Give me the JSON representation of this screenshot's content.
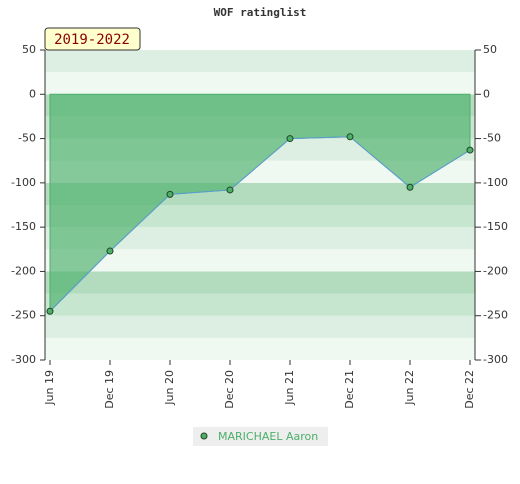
{
  "chart_data": {
    "type": "area",
    "title": "WOF ratinglist",
    "annotation": "2019-2022",
    "categories": [
      "Jun 19",
      "Dec 19",
      "Jun 20",
      "Dec 20",
      "Jun 21",
      "Dec 21",
      "Jun 22",
      "Dec 22"
    ],
    "series": [
      {
        "name": "MARICHAEL Aaron",
        "color": "#4caf6a",
        "line_color": "#5b9bd5",
        "values": [
          -245,
          -177,
          -113,
          -108,
          -50,
          -48,
          -105,
          -63
        ]
      }
    ],
    "ylim": [
      -300,
      50
    ],
    "yticks": [
      -300,
      -250,
      -200,
      -150,
      -100,
      -50,
      0,
      50
    ],
    "y2lim": [
      -300,
      50
    ],
    "y2ticks": [
      -300,
      -250,
      -200,
      -150,
      -100,
      -50,
      0,
      50
    ],
    "grid": true,
    "legend": "bottom"
  }
}
